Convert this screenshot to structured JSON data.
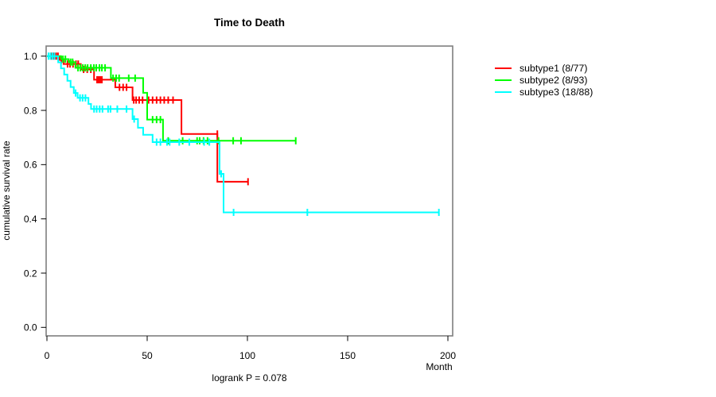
{
  "chart_data": {
    "type": "line",
    "variant": "kaplan-meier-step-curves",
    "title": "Time to Death",
    "xlabel": "Month",
    "ylabel": "cumulative survival rate",
    "annotation": "logrank P = 0.078",
    "xlim": [
      0,
      200
    ],
    "ylim": [
      0.0,
      1.0
    ],
    "x_ticks": [
      0,
      50,
      100,
      150,
      200
    ],
    "y_ticks": [
      {
        "value": 0.0,
        "label": "0.0"
      },
      {
        "value": 0.2,
        "label": "0.2"
      },
      {
        "value": 0.4,
        "label": "0.4"
      },
      {
        "value": 0.6,
        "label": "0.6"
      },
      {
        "value": 0.8,
        "label": "0.8"
      },
      {
        "value": 1.0,
        "label": "1.0"
      }
    ],
    "grid": false,
    "legend_position": "right-outside",
    "frame_color": "#7f7f7f",
    "tick_color": "#000000",
    "series": [
      {
        "name": "subtype1",
        "legend": "subtype1 (8/77)",
        "events": "8/77",
        "color": "#ff0000",
        "start": [
          0,
          1.0
        ],
        "steps": [
          [
            6.3,
            0.986
          ],
          [
            8.3,
            0.971
          ],
          [
            16.9,
            0.951
          ],
          [
            23.5,
            0.913
          ],
          [
            34.1,
            0.885
          ],
          [
            42.7,
            0.838
          ],
          [
            67.1,
            0.713
          ],
          [
            85.0,
            0.537
          ]
        ],
        "end_time": 100.3,
        "censors": [
          [
            2.2,
            1.0
          ],
          [
            3.4,
            1.0
          ],
          [
            4.6,
            1.0
          ],
          [
            5.5,
            1.0
          ],
          [
            7.2,
            0.986
          ],
          [
            10.3,
            0.971
          ],
          [
            11.5,
            0.971
          ],
          [
            13.0,
            0.971
          ],
          [
            14.5,
            0.971
          ],
          [
            15.6,
            0.971
          ],
          [
            18.3,
            0.951
          ],
          [
            20.1,
            0.951
          ],
          [
            21.9,
            0.951
          ],
          [
            25.0,
            0.913
          ],
          [
            25.8,
            0.913
          ],
          [
            26.6,
            0.913
          ],
          [
            27.4,
            0.913
          ],
          [
            36.2,
            0.885
          ],
          [
            38.0,
            0.885
          ],
          [
            39.7,
            0.885
          ],
          [
            43.3,
            0.838
          ],
          [
            44.5,
            0.838
          ],
          [
            46.0,
            0.838
          ],
          [
            47.7,
            0.838
          ],
          [
            50.7,
            0.838
          ],
          [
            52.7,
            0.838
          ],
          [
            54.7,
            0.838
          ],
          [
            56.6,
            0.838
          ],
          [
            58.5,
            0.838
          ],
          [
            60.5,
            0.838
          ],
          [
            62.9,
            0.838
          ],
          [
            85.0,
            0.713
          ],
          [
            100.3,
            0.537
          ]
        ]
      },
      {
        "name": "subtype2",
        "legend": "subtype2 (8/93)",
        "events": "8/93",
        "color": "#00ff00",
        "start": [
          0,
          1.0
        ],
        "steps": [
          [
            7.1,
            0.989
          ],
          [
            10.8,
            0.978
          ],
          [
            14.2,
            0.957
          ],
          [
            31.9,
            0.919
          ],
          [
            48.0,
            0.865
          ],
          [
            50.0,
            0.766
          ],
          [
            57.9,
            0.688
          ]
        ],
        "end_time": 124.1,
        "censors": [
          [
            8.0,
            0.989
          ],
          [
            9.2,
            0.989
          ],
          [
            11.8,
            0.978
          ],
          [
            12.8,
            0.978
          ],
          [
            15.5,
            0.957
          ],
          [
            16.7,
            0.957
          ],
          [
            17.9,
            0.957
          ],
          [
            19.1,
            0.957
          ],
          [
            20.3,
            0.957
          ],
          [
            21.9,
            0.957
          ],
          [
            23.4,
            0.957
          ],
          [
            24.6,
            0.957
          ],
          [
            26.2,
            0.957
          ],
          [
            27.4,
            0.957
          ],
          [
            29.0,
            0.957
          ],
          [
            33.0,
            0.919
          ],
          [
            34.5,
            0.919
          ],
          [
            36.0,
            0.919
          ],
          [
            40.8,
            0.919
          ],
          [
            44.0,
            0.919
          ],
          [
            52.7,
            0.766
          ],
          [
            54.7,
            0.766
          ],
          [
            56.6,
            0.766
          ],
          [
            60.5,
            0.688
          ],
          [
            67.7,
            0.688
          ],
          [
            74.9,
            0.688
          ],
          [
            76.2,
            0.688
          ],
          [
            78.1,
            0.688
          ],
          [
            80.1,
            0.688
          ],
          [
            85.6,
            0.688
          ],
          [
            92.9,
            0.688
          ],
          [
            96.8,
            0.688
          ],
          [
            124.1,
            0.688
          ]
        ]
      },
      {
        "name": "subtype3",
        "legend": "subtype3 (18/88)",
        "events": "18/88",
        "color": "#00ffff",
        "start": [
          0,
          1.0
        ],
        "steps": [
          [
            5.6,
            0.977
          ],
          [
            7.0,
            0.955
          ],
          [
            8.6,
            0.932
          ],
          [
            10.2,
            0.909
          ],
          [
            11.8,
            0.886
          ],
          [
            13.4,
            0.864
          ],
          [
            15.3,
            0.846
          ],
          [
            20.7,
            0.824
          ],
          [
            22.0,
            0.805
          ],
          [
            42.7,
            0.768
          ],
          [
            45.4,
            0.736
          ],
          [
            48.0,
            0.71
          ],
          [
            52.7,
            0.683
          ],
          [
            86.1,
            0.566
          ],
          [
            88.1,
            0.424
          ]
        ],
        "end_time": 195.5,
        "censors": [
          [
            0.8,
            1.0
          ],
          [
            1.8,
            1.0
          ],
          [
            2.8,
            1.0
          ],
          [
            3.8,
            1.0
          ],
          [
            14.3,
            0.864
          ],
          [
            16.5,
            0.846
          ],
          [
            17.8,
            0.846
          ],
          [
            19.2,
            0.846
          ],
          [
            23.5,
            0.805
          ],
          [
            24.8,
            0.805
          ],
          [
            26.3,
            0.805
          ],
          [
            27.7,
            0.805
          ],
          [
            30.5,
            0.805
          ],
          [
            31.7,
            0.805
          ],
          [
            35.1,
            0.805
          ],
          [
            39.7,
            0.805
          ],
          [
            43.5,
            0.768
          ],
          [
            54.7,
            0.683
          ],
          [
            56.6,
            0.683
          ],
          [
            59.9,
            0.683
          ],
          [
            61.2,
            0.683
          ],
          [
            66.0,
            0.683
          ],
          [
            71.0,
            0.683
          ],
          [
            78.4,
            0.683
          ],
          [
            81.0,
            0.683
          ],
          [
            86.9,
            0.566
          ],
          [
            93.1,
            0.424
          ],
          [
            129.9,
            0.424
          ],
          [
            195.5,
            0.424
          ]
        ]
      }
    ]
  }
}
